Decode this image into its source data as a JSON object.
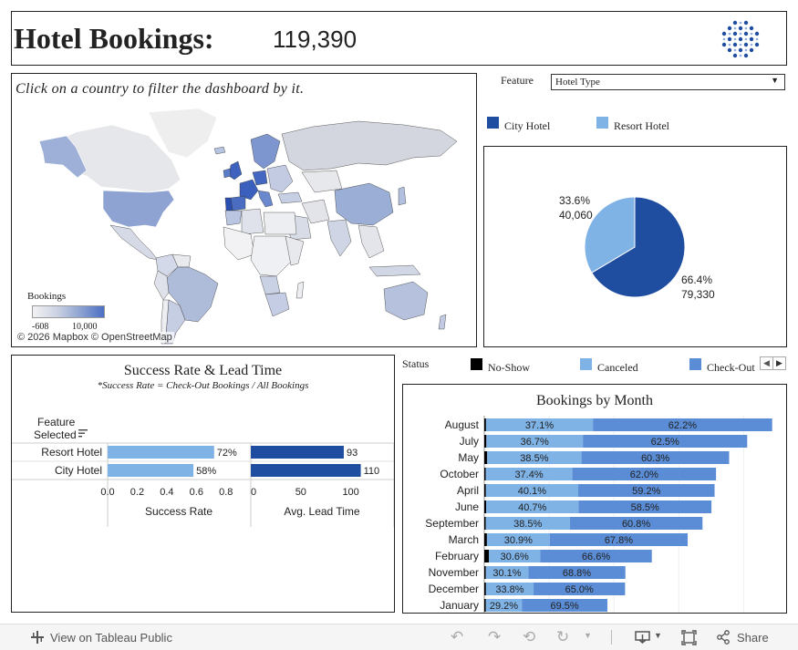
{
  "header": {
    "title": "Hotel Bookings:",
    "total": "119,390"
  },
  "map": {
    "instruction": "Click on a country to filter the dashboard by it.",
    "legend_title": "Bookings",
    "legend_min": "-608",
    "legend_max": "10,000",
    "attribution": "© 2026 Mapbox © OpenStreetMap"
  },
  "feature": {
    "label": "Feature",
    "selected": "Hotel Type"
  },
  "hotel_legend": [
    {
      "label": "City Hotel",
      "color": "#1f4da0"
    },
    {
      "label": "Resort Hotel",
      "color": "#7fb2e5"
    }
  ],
  "pie": {
    "resort_pct": "33.6%",
    "resort_count": "40,060",
    "city_pct": "66.4%",
    "city_count": "79,330"
  },
  "success": {
    "title": "Success Rate & Lead Time",
    "subtitle": "*Success Rate = Check-Out Bookings / All Bookings",
    "feature_header_1": "Feature",
    "feature_header_2": "Selected",
    "x1_label": "Success Rate",
    "x2_label": "Avg. Lead Time",
    "x1_ticks": [
      "0.0",
      "0.2",
      "0.4",
      "0.6",
      "0.8"
    ],
    "x2_ticks": [
      "0",
      "50",
      "100"
    ]
  },
  "status": {
    "label": "Status",
    "items": [
      {
        "label": "No-Show",
        "color": "#000000"
      },
      {
        "label": "Canceled",
        "color": "#7fb2e5"
      },
      {
        "label": "Check-Out",
        "color": "#5b8dd6"
      }
    ]
  },
  "month": {
    "title": "Bookings by Month"
  },
  "toolbar": {
    "view_label": "View on Tableau Public",
    "share_label": "Share"
  },
  "chart_data": [
    {
      "type": "pie",
      "categories": [
        "City Hotel",
        "Resort Hotel"
      ],
      "values": [
        79330,
        40060
      ],
      "labels": [
        "66.4%\n79,330",
        "33.6%\n40,060"
      ]
    },
    {
      "type": "bar",
      "title": "Success Rate",
      "categories": [
        "Resort Hotel",
        "City Hotel"
      ],
      "values": [
        0.72,
        0.58
      ],
      "value_labels": [
        "72%",
        "58%"
      ],
      "xlabel": "Success Rate",
      "xlim": [
        0,
        0.9
      ]
    },
    {
      "type": "bar",
      "title": "Avg. Lead Time",
      "categories": [
        "Resort Hotel",
        "City Hotel"
      ],
      "values": [
        93,
        110
      ],
      "value_labels": [
        "93",
        "110"
      ],
      "xlabel": "Avg. Lead Time",
      "xlim": [
        0,
        135
      ]
    },
    {
      "type": "bar",
      "title": "Bookings by Month",
      "categories": [
        "August",
        "July",
        "May",
        "October",
        "April",
        "June",
        "September",
        "March",
        "February",
        "November",
        "December",
        "January"
      ],
      "series": [
        {
          "name": "No-Show",
          "values": [
            0.6,
            0.8,
            1.2,
            0.6,
            0.7,
            0.8,
            0.7,
            1.3,
            2.8,
            1.1,
            1.2,
            1.3
          ]
        },
        {
          "name": "Canceled",
          "values": [
            37.1,
            36.7,
            38.5,
            37.4,
            40.1,
            40.7,
            38.5,
            30.9,
            30.6,
            30.1,
            33.8,
            29.2
          ]
        },
        {
          "name": "Check-Out",
          "values": [
            62.2,
            62.5,
            60.3,
            62.0,
            59.2,
            58.5,
            60.8,
            67.8,
            66.6,
            68.8,
            65.0,
            69.5
          ]
        }
      ],
      "totals": [
        13877,
        12661,
        11791,
        11160,
        11089,
        10939,
        10508,
        9794,
        8068,
        6794,
        6780,
        5929
      ],
      "labels_shown": [
        "Canceled",
        "Check-Out"
      ]
    }
  ]
}
